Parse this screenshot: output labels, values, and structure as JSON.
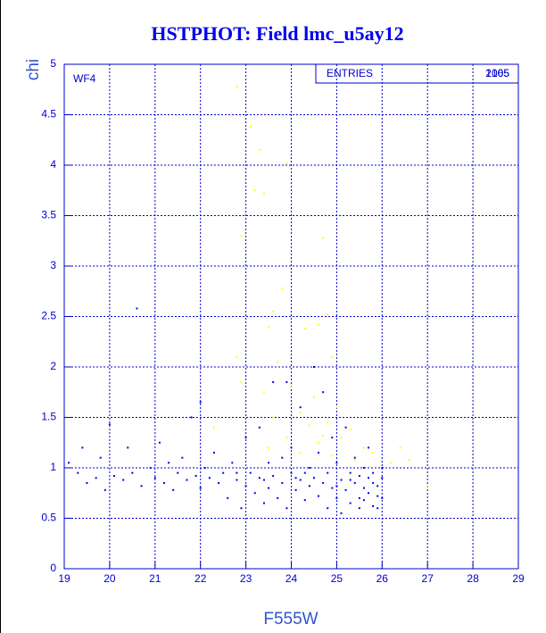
{
  "chart_data": {
    "type": "scatter",
    "title": "HSTPHOT: Field lmc_u5ay12",
    "x_label": "F555W",
    "y_label": "chi",
    "annotation": "WF4",
    "entries_label": "ENTRIES",
    "entries_values": [
      2165,
      1005
    ],
    "xlim": [
      19,
      29
    ],
    "ylim": [
      0,
      5
    ],
    "xticks": [
      19,
      20,
      21,
      22,
      23,
      24,
      25,
      26,
      27,
      28,
      29
    ],
    "yticks": [
      0,
      0.5,
      1,
      1.5,
      2,
      2.5,
      3,
      3.5,
      4,
      4.5,
      5
    ],
    "grid": true,
    "series": [
      {
        "color": "#0000ee",
        "x": [
          19.1,
          19.3,
          19.4,
          19.5,
          19.7,
          19.8,
          19.9,
          20.0,
          20.1,
          20.3,
          20.4,
          20.5,
          20.6,
          20.7,
          20.9,
          21.0,
          21.1,
          21.2,
          21.3,
          21.4,
          21.5,
          21.6,
          21.7,
          21.8,
          21.9,
          22.0,
          22.0,
          22.1,
          22.2,
          22.3,
          22.4,
          22.5,
          22.6,
          22.7,
          22.8,
          22.9,
          23.0,
          23.0,
          23.1,
          23.2,
          23.3,
          23.3,
          23.4,
          23.5,
          23.5,
          23.6,
          23.6,
          23.7,
          23.8,
          23.8,
          23.9,
          24.0,
          24.0,
          24.1,
          24.2,
          24.2,
          24.3,
          24.4,
          24.4,
          24.5,
          24.5,
          24.6,
          24.6,
          24.7,
          24.8,
          24.8,
          24.9,
          24.9,
          25.0,
          25.0,
          25.1,
          25.1,
          25.2,
          25.2,
          25.3,
          25.3,
          25.4,
          25.4,
          25.5,
          25.5,
          25.5,
          25.6,
          25.6,
          25.6,
          25.7,
          25.7,
          25.7,
          25.8,
          25.8,
          25.8,
          25.9,
          25.9,
          25.9,
          26.0,
          26.0,
          26.0,
          23.9,
          24.7,
          22.8,
          23.4,
          24.1,
          24.3,
          25.0,
          25.3
        ],
        "y": [
          1.05,
          0.95,
          1.2,
          0.85,
          0.9,
          1.1,
          0.78,
          1.43,
          0.92,
          0.88,
          1.2,
          0.95,
          2.58,
          0.82,
          1.0,
          0.9,
          1.25,
          0.85,
          1.05,
          0.78,
          0.95,
          1.1,
          0.88,
          1.5,
          0.92,
          1.65,
          0.8,
          1.0,
          0.9,
          1.15,
          0.85,
          0.95,
          0.7,
          1.05,
          0.88,
          0.6,
          1.3,
          0.82,
          0.95,
          0.75,
          1.4,
          0.9,
          0.65,
          1.05,
          0.8,
          1.85,
          0.92,
          0.7,
          1.1,
          0.85,
          0.6,
          0.95,
          1.2,
          0.78,
          0.88,
          1.6,
          0.68,
          1.0,
          0.82,
          2.0,
          0.9,
          0.72,
          1.15,
          0.85,
          0.6,
          0.95,
          1.3,
          0.8,
          0.7,
          1.05,
          0.88,
          0.55,
          1.4,
          0.78,
          0.95,
          0.65,
          0.85,
          1.1,
          0.7,
          0.92,
          0.6,
          1.0,
          0.8,
          0.68,
          0.9,
          0.75,
          1.2,
          0.85,
          0.62,
          0.95,
          0.72,
          0.82,
          0.6,
          0.9,
          0.7,
          1.0,
          1.85,
          1.75,
          0.95,
          0.88,
          0.9,
          0.95,
          0.82,
          0.88
        ]
      },
      {
        "color": "#ffff00",
        "x": [
          22.8,
          23.1,
          23.3,
          23.9,
          23.2,
          23.4,
          22.9,
          24.7,
          23.8,
          23.6,
          24.8,
          23.5,
          24.3,
          24.6,
          22.8,
          23.7,
          24.9,
          22.9,
          23.4,
          24.0,
          24.5,
          24.2,
          25.0,
          23.6,
          24.4,
          24.8,
          25.3,
          23.9,
          24.6,
          25.1,
          25.6,
          24.2,
          24.9,
          25.4,
          26.2,
          26.6,
          27.0,
          23.5,
          24.7,
          25.8,
          22.3,
          26.4
        ],
        "y": [
          4.78,
          4.38,
          4.15,
          4.02,
          3.75,
          3.72,
          3.3,
          3.28,
          2.78,
          2.55,
          2.52,
          2.4,
          2.38,
          2.42,
          2.1,
          2.05,
          2.1,
          1.85,
          1.75,
          1.8,
          1.7,
          1.55,
          1.6,
          1.5,
          1.42,
          1.45,
          1.38,
          1.3,
          1.25,
          1.3,
          1.2,
          1.15,
          1.12,
          1.08,
          1.05,
          1.08,
          0.82,
          1.2,
          1.32,
          1.15,
          1.4,
          1.2
        ]
      }
    ]
  }
}
